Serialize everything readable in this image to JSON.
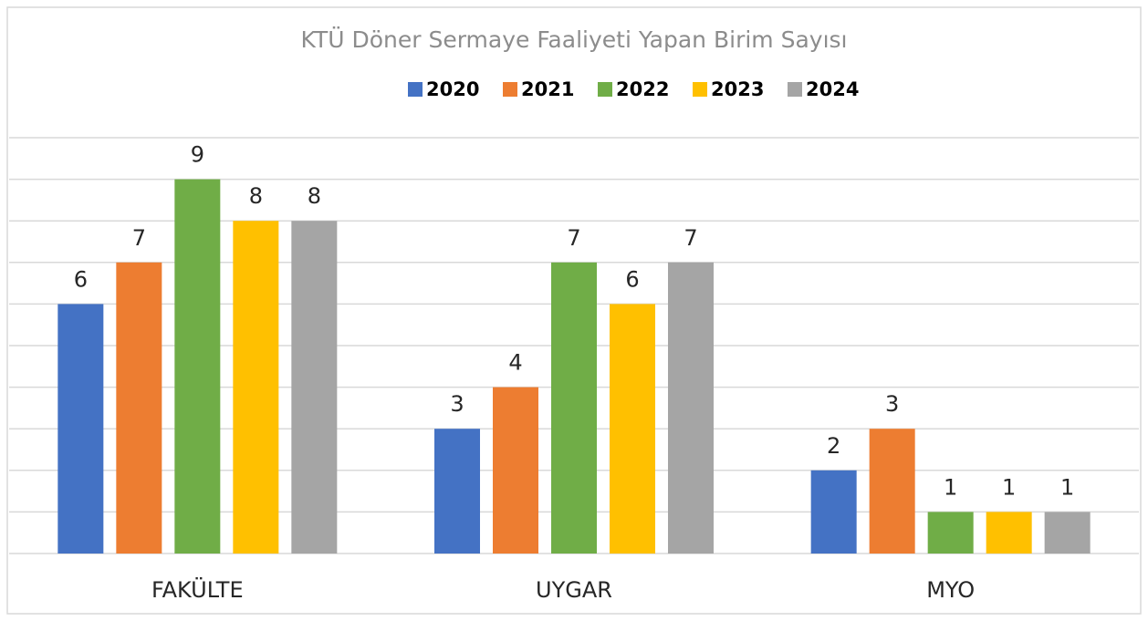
{
  "chart_data": {
    "type": "bar",
    "title": "KTÜ Döner Sermaye Faaliyeti Yapan Birim Sayısı",
    "categories": [
      "FAKÜLTE",
      "UYGAR",
      "MYO"
    ],
    "series": [
      {
        "name": "2020",
        "color": "#4472c4",
        "values": [
          6,
          3,
          2
        ]
      },
      {
        "name": "2021",
        "color": "#ed7d31",
        "values": [
          7,
          4,
          3
        ]
      },
      {
        "name": "2022",
        "color": "#70ad47",
        "values": [
          9,
          7,
          1
        ]
      },
      {
        "name": "2023",
        "color": "#ffc000",
        "values": [
          8,
          6,
          1
        ]
      },
      {
        "name": "2024",
        "color": "#a5a5a5",
        "values": [
          8,
          7,
          1
        ]
      }
    ],
    "ylim": [
      0,
      10
    ],
    "yticks": [
      0,
      1,
      2,
      3,
      4,
      5,
      6,
      7,
      8,
      9,
      10
    ],
    "grid": true,
    "legend": "top"
  }
}
